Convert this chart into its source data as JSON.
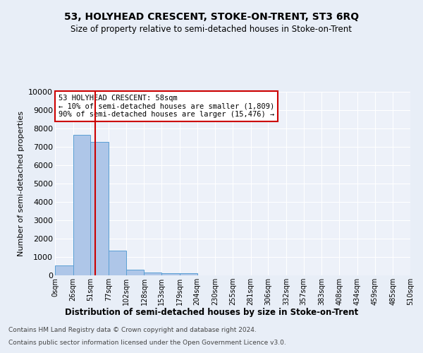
{
  "title": "53, HOLYHEAD CRESCENT, STOKE-ON-TRENT, ST3 6RQ",
  "subtitle": "Size of property relative to semi-detached houses in Stoke-on-Trent",
  "xlabel": "Distribution of semi-detached houses by size in Stoke-on-Trent",
  "ylabel": "Number of semi-detached properties",
  "footer_line1": "Contains HM Land Registry data © Crown copyright and database right 2024.",
  "footer_line2": "Contains public sector information licensed under the Open Government Licence v3.0.",
  "bin_labels": [
    "0sqm",
    "26sqm",
    "51sqm",
    "77sqm",
    "102sqm",
    "128sqm",
    "153sqm",
    "179sqm",
    "204sqm",
    "230sqm",
    "255sqm",
    "281sqm",
    "306sqm",
    "332sqm",
    "357sqm",
    "383sqm",
    "408sqm",
    "434sqm",
    "459sqm",
    "485sqm",
    "510sqm"
  ],
  "bar_values": [
    550,
    7650,
    7280,
    1360,
    300,
    165,
    130,
    100,
    0,
    0,
    0,
    0,
    0,
    0,
    0,
    0,
    0,
    0,
    0,
    0
  ],
  "bar_color": "#aec6e8",
  "bar_edge_color": "#5a9fd4",
  "property_label": "53 HOLYHEAD CRESCENT: 58sqm",
  "p10_label": "← 10% of semi-detached houses are smaller (1,809)",
  "p90_label": "90% of semi-detached houses are larger (15,476) →",
  "vline_x": 58,
  "ylim": [
    0,
    10000
  ],
  "yticks": [
    0,
    1000,
    2000,
    3000,
    4000,
    5000,
    6000,
    7000,
    8000,
    9000,
    10000
  ],
  "background_color": "#e8eef7",
  "axes_bg_color": "#edf1f9",
  "grid_color": "#ffffff",
  "annotation_box_color": "#ffffff",
  "annotation_box_edge": "#cc0000",
  "vline_color": "#cc0000",
  "bin_edges": [
    0,
    26,
    51,
    77,
    102,
    128,
    153,
    179,
    204,
    230,
    255,
    281,
    306,
    332,
    357,
    383,
    408,
    434,
    459,
    485,
    510
  ]
}
